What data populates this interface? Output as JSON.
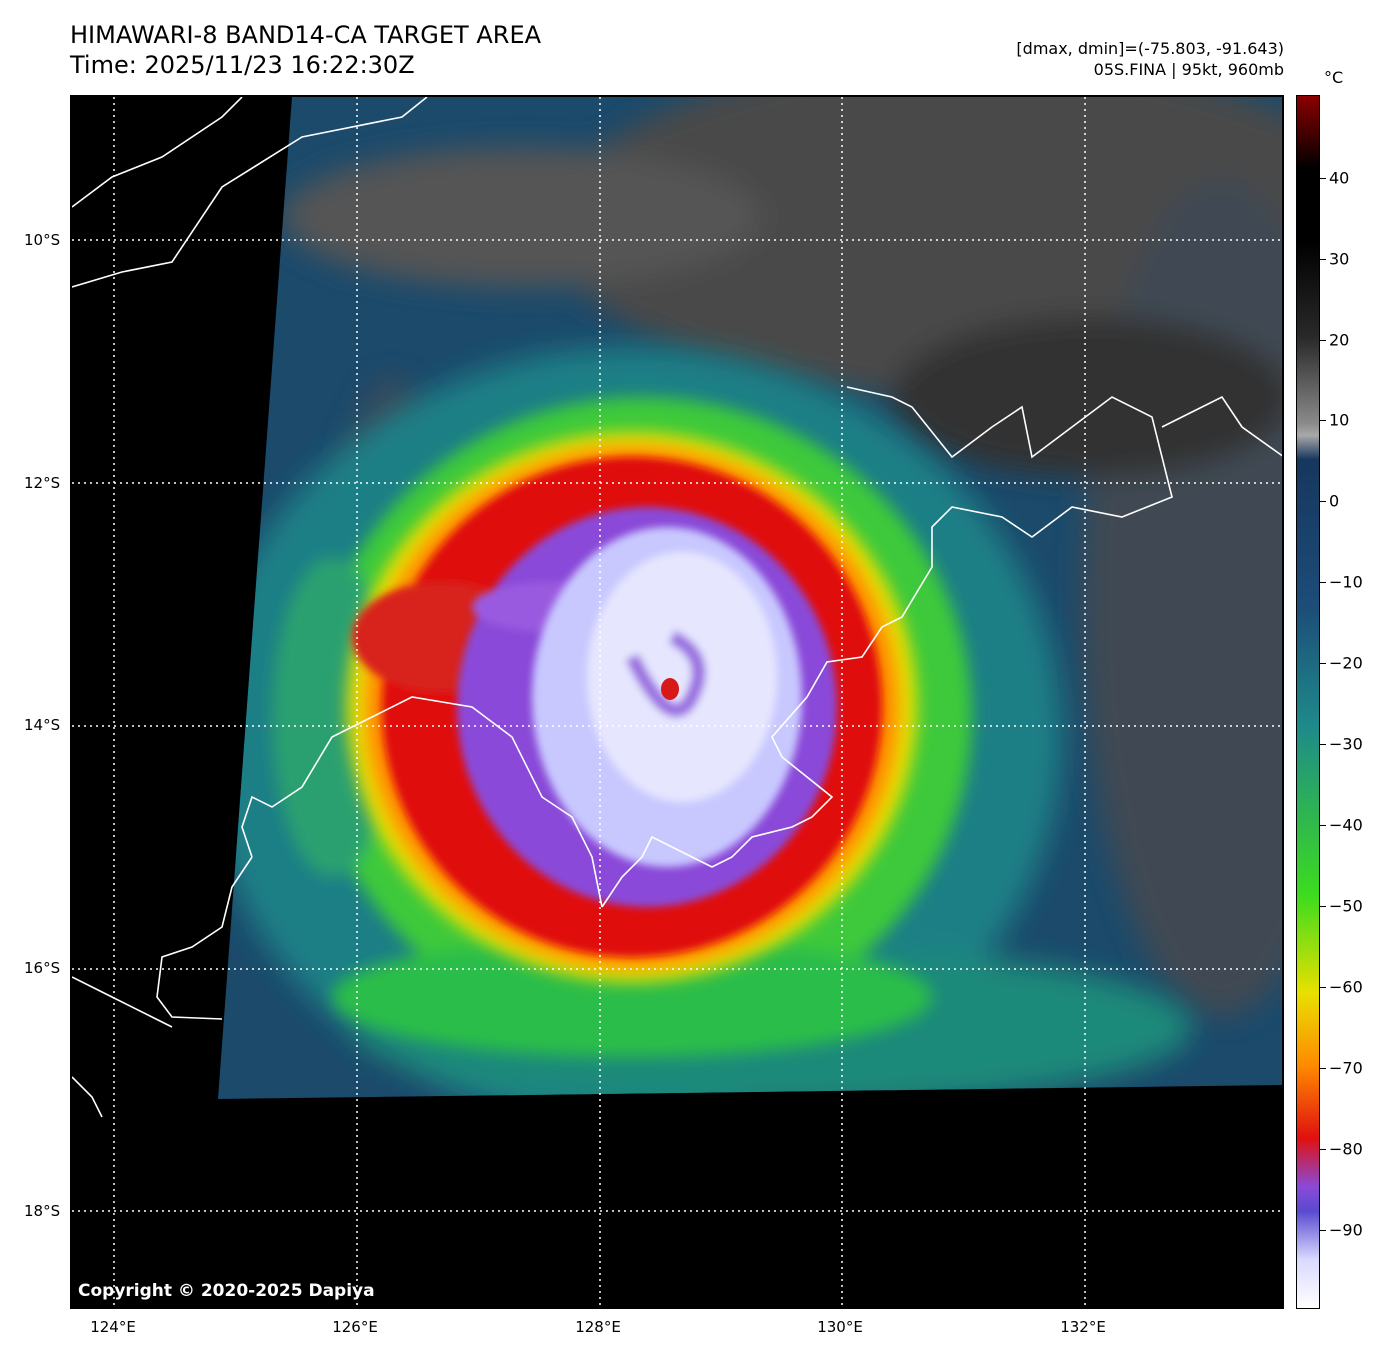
{
  "header": {
    "title_line1": "HIMAWARI-8 BAND14-CA TARGET AREA",
    "title_line2": "Time: 2025/11/23 16:22:30Z",
    "info_line1": "[dmax, dmin]=(-75.803, -91.643)",
    "info_line2": "05S.FINA | 95kt, 960mb"
  },
  "map": {
    "copyright": "Copyright © 2020-2025 Dapiya",
    "lat_labels": [
      "10°S",
      "12°S",
      "14°S",
      "16°S",
      "18°S"
    ],
    "lon_labels": [
      "124°E",
      "126°E",
      "128°E",
      "130°E",
      "132°E"
    ],
    "storm_center": {
      "lat": "13.7°S",
      "lon": "128.6°E"
    }
  },
  "colorbar": {
    "unit": "°C",
    "labels": [
      "40",
      "30",
      "20",
      "10",
      "0",
      "−10",
      "−20",
      "−30",
      "−40",
      "−50",
      "−60",
      "−70",
      "−80",
      "−90"
    ],
    "colors": {
      "warm_top": "#8b0000",
      "black": "#000000",
      "gray": "#8a8a8a",
      "navy": "#16375e",
      "teal": "#1e8a8a",
      "green": "#3ddc1e",
      "yellow": "#e8e000",
      "orange": "#ff8a00",
      "red": "#e01010",
      "purple": "#8a4ad8",
      "lavender": "#d9d9ff",
      "white": "#ffffff"
    }
  }
}
